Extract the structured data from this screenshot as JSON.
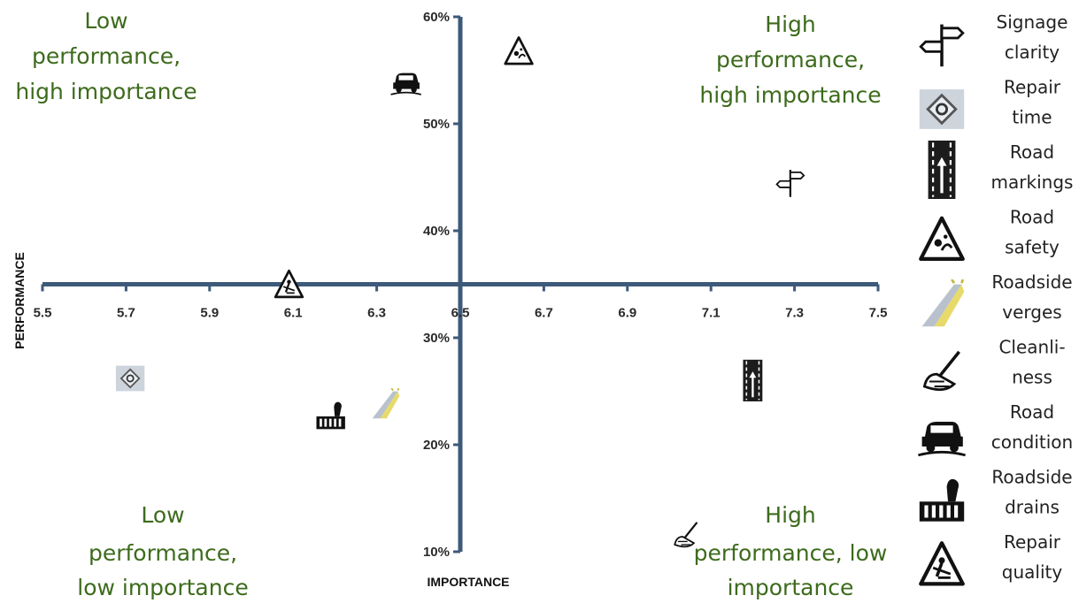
{
  "chart_data": {
    "type": "scatter",
    "title": "",
    "xlabel": "IMPORTANCE",
    "ylabel": "PERFORMANCE",
    "xlim": [
      5.5,
      7.5
    ],
    "ylim": [
      10,
      60
    ],
    "x_ticks": [
      "5.5",
      "5.7",
      "5.9",
      "6.1",
      "6.3",
      "6.5",
      "6.7",
      "6.9",
      "7.1",
      "7.3",
      "7.5"
    ],
    "y_ticks": [
      "10%",
      "20%",
      "30%",
      "40%",
      "50%",
      "60%"
    ],
    "grid": false,
    "axes_cross_at": {
      "x": 6.5,
      "y": 35
    },
    "legend_position": "right",
    "quadrant_labels": {
      "top_left": [
        "Low",
        "performance,",
        "high importance"
      ],
      "top_right": [
        "High",
        "performance,",
        "high importance"
      ],
      "bottom_left": [
        "Low",
        "performance,",
        "low importance"
      ],
      "bottom_right": [
        "High",
        "performance, low",
        "importance"
      ]
    },
    "series": [
      {
        "key": "signage",
        "icon": "signpost-icon",
        "label": [
          "Signage",
          "clarity"
        ],
        "x": 7.29,
        "y": 44.5
      },
      {
        "key": "repair_time",
        "icon": "repair-sign-icon",
        "label": [
          "Repair",
          "time"
        ],
        "x": 5.71,
        "y": 26.2
      },
      {
        "key": "road_markings",
        "icon": "road-markings-icon",
        "label": [
          "Road",
          "markings"
        ],
        "x": 7.2,
        "y": 26.0
      },
      {
        "key": "road_safety",
        "icon": "warning-triangle-icon",
        "label": [
          "Road",
          "safety"
        ],
        "x": 6.64,
        "y": 56.8
      },
      {
        "key": "verges",
        "icon": "roadside-verge-icon",
        "label": [
          "Roadside",
          "verges"
        ],
        "x": 6.32,
        "y": 23.8
      },
      {
        "key": "cleanliness",
        "icon": "sweeping-icon",
        "label": [
          "Cleanli-",
          "ness"
        ],
        "x": 7.04,
        "y": 11.7
      },
      {
        "key": "road_condition",
        "icon": "car-pothole-icon",
        "label": [
          "Road",
          "condition"
        ],
        "x": 6.37,
        "y": 54.0
      },
      {
        "key": "drains",
        "icon": "drain-grate-icon",
        "label": [
          "Roadside",
          "drains"
        ],
        "x": 6.19,
        "y": 22.8
      },
      {
        "key": "repair_quality",
        "icon": "roadworks-sign-icon",
        "label": [
          "Repair",
          "quality"
        ],
        "x": 6.09,
        "y": 35.0
      }
    ],
    "colors": {
      "axis": "#3d5a7a",
      "quadrant_text": "#3d6b1c"
    }
  }
}
